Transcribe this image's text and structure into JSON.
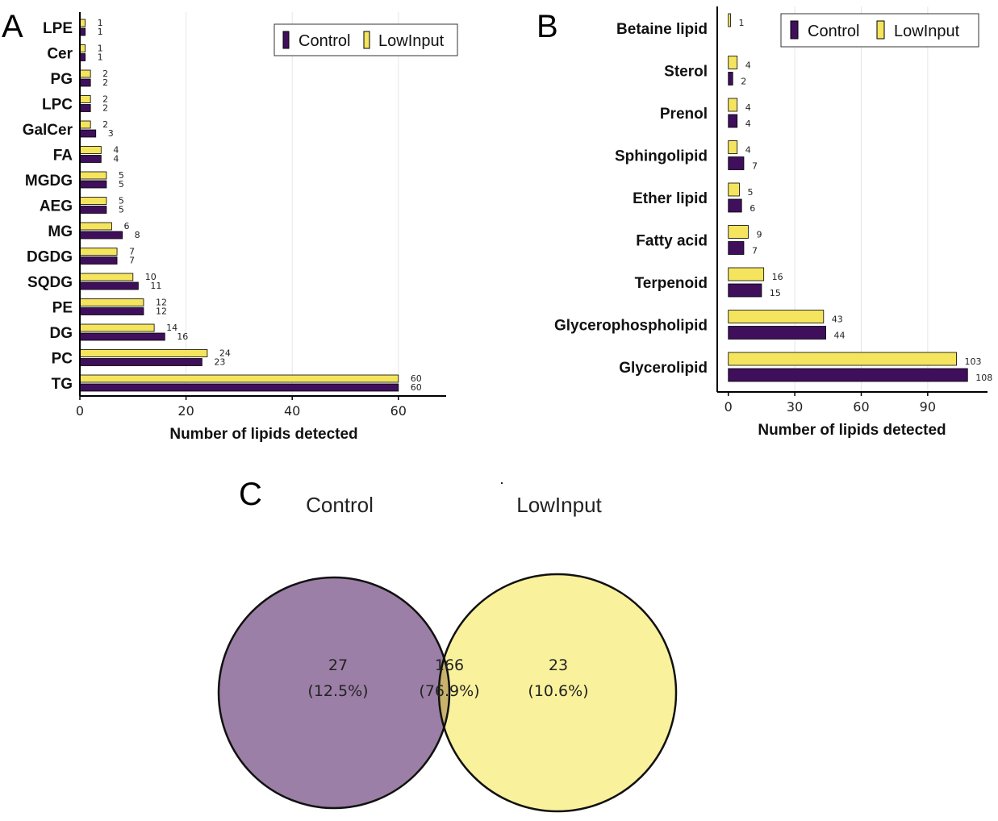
{
  "colors": {
    "control": "#3f0f5c",
    "lowinput": "#f5e45e",
    "grid": "#e6e6e6",
    "venn_control": "#9b7fa6",
    "venn_lowinput": "#f9f19c",
    "venn_overlap": "#c9b26c"
  },
  "chart_data": [
    {
      "panel": "A",
      "type": "bar",
      "orientation": "horizontal",
      "categories": [
        "LPE",
        "Cer",
        "PG",
        "LPC",
        "GalCer",
        "FA",
        "MGDG",
        "AEG",
        "MG",
        "DGDG",
        "SQDG",
        "PE",
        "DG",
        "PC",
        "TG"
      ],
      "series": [
        {
          "name": "Control",
          "values": [
            1,
            1,
            2,
            2,
            3,
            4,
            5,
            5,
            8,
            7,
            11,
            12,
            16,
            23,
            60
          ]
        },
        {
          "name": "LowInput",
          "values": [
            1,
            1,
            2,
            2,
            2,
            4,
            5,
            5,
            6,
            7,
            10,
            12,
            14,
            24,
            60
          ]
        }
      ],
      "xlabel": "Number of lipids detected",
      "xlim": [
        0,
        69
      ],
      "xticks": [
        0,
        20,
        40,
        60
      ],
      "grid": true,
      "legend": "top-right"
    },
    {
      "panel": "B",
      "type": "bar",
      "orientation": "horizontal",
      "categories": [
        "Betaine lipid",
        "Sterol",
        "Prenol",
        "Sphingolipid",
        "Ether lipid",
        "Fatty acid",
        "Terpenoid",
        "Glycerophospholipid",
        "Glycerolipid"
      ],
      "series": [
        {
          "name": "Control",
          "values": [
            null,
            2,
            4,
            7,
            6,
            7,
            15,
            44,
            108
          ]
        },
        {
          "name": "LowInput",
          "values": [
            1,
            4,
            4,
            4,
            5,
            9,
            16,
            43,
            103
          ]
        }
      ],
      "xlabel": "Number of lipids detected",
      "xlim": [
        -5,
        117
      ],
      "xticks": [
        0,
        30,
        60,
        90
      ],
      "grid": true,
      "legend": "top-right"
    },
    {
      "panel": "C",
      "type": "venn",
      "sets": [
        {
          "name": "Control",
          "only": "27",
          "only_pct": "(12.5%)"
        },
        {
          "name": "LowInput",
          "only": "23",
          "only_pct": "(10.6%)"
        }
      ],
      "intersection": {
        "value": "166",
        "pct": "(76.9%)"
      }
    }
  ]
}
